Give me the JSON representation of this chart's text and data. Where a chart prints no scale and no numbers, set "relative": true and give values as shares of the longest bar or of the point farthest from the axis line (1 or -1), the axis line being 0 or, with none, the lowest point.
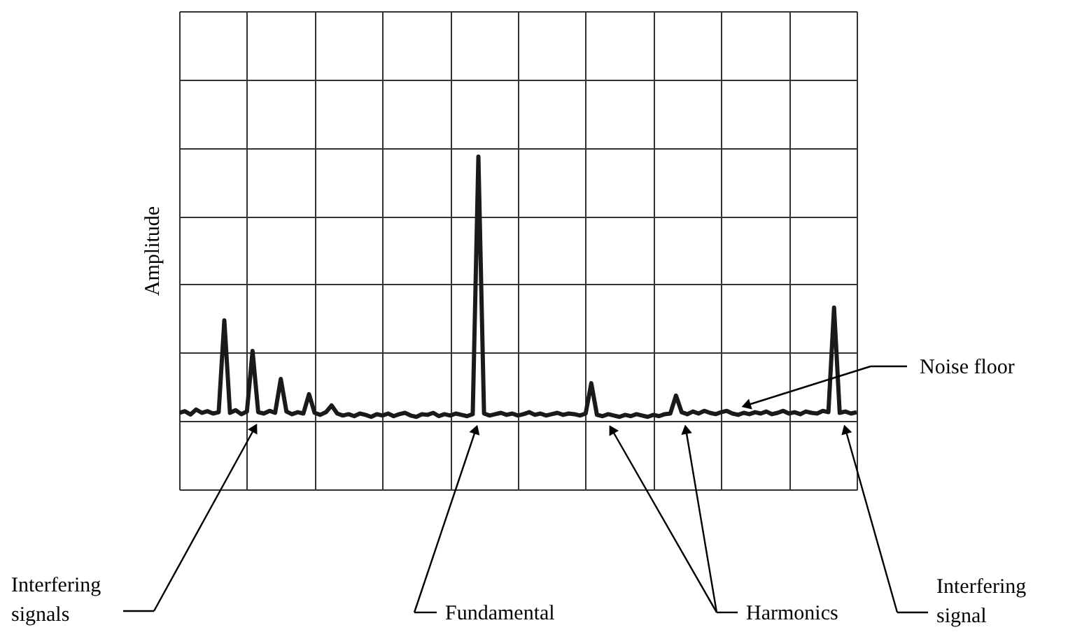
{
  "chart_data": {
    "type": "line",
    "relative": true,
    "ylabel": "Amplitude",
    "grid": true,
    "tick_labels": false,
    "marker": "none",
    "line_style": "solid",
    "categories": [
      null,
      null,
      null,
      null,
      null,
      null,
      null,
      null,
      null,
      null,
      null,
      null,
      null,
      null,
      null,
      null,
      null,
      null,
      null,
      null,
      null,
      null,
      null,
      null,
      null,
      null,
      null,
      null,
      null,
      null,
      null,
      null,
      null,
      null,
      null,
      null,
      null,
      null,
      null,
      null,
      null,
      null,
      null,
      null,
      null,
      null,
      null,
      null,
      null,
      null,
      null,
      null,
      null,
      null,
      null,
      null,
      null,
      null,
      null,
      null,
      null,
      null,
      null,
      null,
      null,
      null,
      null,
      null,
      null,
      null,
      null,
      null,
      null,
      null,
      null,
      null,
      null,
      null,
      null,
      null,
      null,
      null,
      null,
      null,
      null,
      null,
      null,
      null,
      null,
      null,
      null,
      null,
      null,
      null,
      null,
      null,
      null,
      null,
      null,
      null,
      null,
      null,
      null,
      null,
      null,
      null,
      null,
      null,
      null,
      null,
      null,
      null,
      null,
      null,
      null,
      null,
      null,
      null,
      null,
      null,
      null
    ],
    "series": [
      {
        "color": "#1a1a1a",
        "values": [
          0.23,
          0.235,
          0.225,
          0.24,
          0.23,
          0.235,
          0.228,
          0.232,
          0.508,
          0.23,
          0.238,
          0.226,
          0.234,
          0.416,
          0.232,
          0.228,
          0.236,
          0.23,
          0.332,
          0.234,
          0.226,
          0.232,
          0.228,
          0.286,
          0.23,
          0.224,
          0.232,
          0.252,
          0.228,
          0.222,
          0.226,
          0.22,
          0.228,
          0.224,
          0.218,
          0.226,
          0.222,
          0.228,
          0.22,
          0.226,
          0.23,
          0.222,
          0.218,
          0.226,
          0.224,
          0.23,
          0.22,
          0.226,
          0.222,
          0.228,
          0.224,
          0.22,
          0.226,
          1,
          0.228,
          0.222,
          0.226,
          0.23,
          0.224,
          0.228,
          0.222,
          0.226,
          0.232,
          0.224,
          0.228,
          0.222,
          0.226,
          0.23,
          0.224,
          0.228,
          0.226,
          0.222,
          0.228,
          0.319,
          0.224,
          0.22,
          0.226,
          0.222,
          0.218,
          0.224,
          0.22,
          0.226,
          0.222,
          0.218,
          0.224,
          0.22,
          0.226,
          0.228,
          0.282,
          0.232,
          0.226,
          0.234,
          0.228,
          0.236,
          0.23,
          0.226,
          0.232,
          0.236,
          0.228,
          0.224,
          0.23,
          0.226,
          0.232,
          0.228,
          0.234,
          0.226,
          0.23,
          0.236,
          0.228,
          0.232,
          0.226,
          0.234,
          0.23,
          0.228,
          0.236,
          0.232,
          0.546,
          0.23,
          0.234,
          0.228,
          0.232
        ]
      }
    ],
    "annotations": [
      "Noise floor",
      "Interfering signals",
      "Fundamental",
      "Harmonics",
      "Interfering signal"
    ]
  }
}
